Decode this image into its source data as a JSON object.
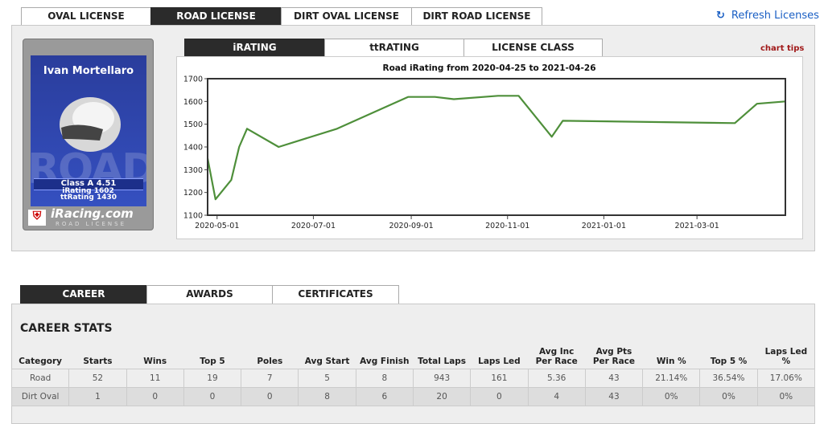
{
  "license_tabs": [
    "OVAL LICENSE",
    "ROAD LICENSE",
    "DIRT OVAL LICENSE",
    "DIRT ROAD LICENSE"
  ],
  "refresh": "Refresh Licenses",
  "card": {
    "name": "Ivan Mortellaro",
    "class": "Class A 4.51",
    "ttrating": "ttRating 1430",
    "irating": "iRating 1602",
    "brand": "iRacing.com",
    "license": "ROAD LICENSE"
  },
  "chart_tabs": [
    "iRATING",
    "ttRATING",
    "LICENSE CLASS"
  ],
  "chart_tips": "chart tips",
  "chart_data": {
    "type": "line",
    "title": "Road iRating from 2020-04-25 to 2021-04-26",
    "x": [
      "2020-04-25",
      "2020-04-30",
      "2020-05-10",
      "2020-05-15",
      "2020-05-20",
      "2020-06-09",
      "2020-07-16",
      "2020-08-30",
      "2020-09-16",
      "2020-09-28",
      "2020-10-26",
      "2020-11-08",
      "2020-11-29",
      "2020-12-06",
      "2021-03-25",
      "2021-04-08",
      "2021-04-26"
    ],
    "values": [
      1350,
      1170,
      1255,
      1400,
      1480,
      1400,
      1480,
      1620,
      1620,
      1610,
      1625,
      1625,
      1445,
      1515,
      1505,
      1590,
      1600
    ],
    "color": "#4e8f3a",
    "xlim": [
      "2020-04-25",
      "2021-04-26"
    ],
    "xticks": [
      "2020-05-01",
      "2020-07-01",
      "2020-09-01",
      "2020-11-01",
      "2021-01-01",
      "2021-03-01"
    ],
    "ylim": [
      1100,
      1700
    ],
    "yticks": [
      1100,
      1200,
      1300,
      1400,
      1500,
      1600,
      1700
    ],
    "grid": false
  },
  "career_tabs": [
    "CAREER",
    "AWARDS",
    "CERTIFICATES"
  ],
  "stats": {
    "title": "CAREER STATS",
    "headers": [
      "Category",
      "Starts",
      "Wins",
      "Top 5",
      "Poles",
      "Avg Start",
      "Avg Finish",
      "Total Laps",
      "Laps Led",
      "Avg Inc Per Race",
      "Avg Pts Per Race",
      "Win %",
      "Top 5 %",
      "Laps Led %"
    ],
    "rows": [
      [
        "Road",
        52,
        11,
        19,
        7,
        5,
        8,
        943,
        161,
        5.36,
        43,
        "21.14%",
        "36.54%",
        "17.06%"
      ],
      [
        "Dirt Oval",
        1,
        0,
        0,
        0,
        8,
        6,
        20,
        0,
        4,
        43,
        "0%",
        "0%",
        "0%"
      ]
    ]
  }
}
